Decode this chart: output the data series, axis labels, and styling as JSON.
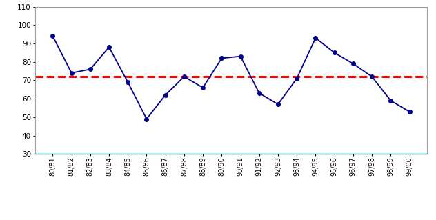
{
  "x_labels": [
    "80/81",
    "81/82",
    "82/83",
    "83/84",
    "84/85",
    "85/86",
    "86/87",
    "87/88",
    "88/89",
    "89/90",
    "90/91",
    "91/92",
    "92/93",
    "93/94",
    "94/95",
    "95/96",
    "96/97",
    "97/98",
    "98/99",
    "99/00"
  ],
  "y_values": [
    94,
    74,
    76,
    88,
    69,
    49,
    62,
    72,
    66,
    82,
    83,
    63,
    57,
    71,
    93,
    85,
    79,
    72,
    59,
    53
  ],
  "dashed_line_y": 72,
  "ylim": [
    30,
    110
  ],
  "yticks": [
    30,
    40,
    50,
    60,
    70,
    80,
    90,
    100,
    110
  ],
  "line_color": "#00008B",
  "dashed_color": "#FF0000",
  "marker_size": 4,
  "line_width": 1.3,
  "dashed_linewidth": 2.2,
  "background_color": "#FFFFFF",
  "plot_bg_color": "#FFFFFF",
  "border_color": "#A0A0A0",
  "bottom_spine_color": "#008080",
  "tick_label_fontsize": 7,
  "ytick_label_fontsize": 7.5
}
